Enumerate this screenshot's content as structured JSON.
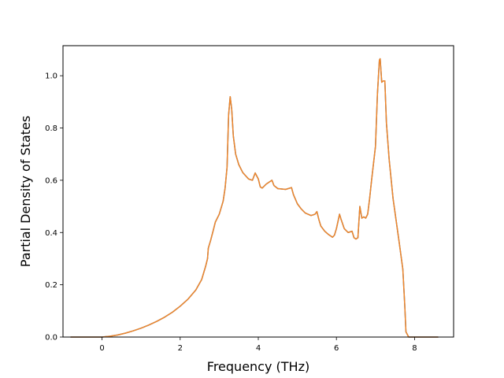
{
  "chart_data": {
    "type": "line",
    "title": "",
    "xlabel": "Frequency (THz)",
    "ylabel": "Partial Density of States",
    "xlim": [
      -1.0,
      9.0
    ],
    "ylim": [
      0.0,
      1.115
    ],
    "x_ticks": [
      0,
      2,
      4,
      6,
      8
    ],
    "x_tick_labels": [
      "0",
      "2",
      "4",
      "6",
      "8"
    ],
    "y_ticks": [
      0.0,
      0.2,
      0.4,
      0.6,
      0.8,
      1.0
    ],
    "y_tick_labels": [
      "0.0",
      "0.2",
      "0.4",
      "0.6",
      "0.8",
      "1.0"
    ],
    "grid": false,
    "legend": "none",
    "series": [
      {
        "color": "#2f72b2",
        "points": [
          [
            -0.8,
            0.0
          ],
          [
            0.0,
            0.0
          ],
          [
            0.2,
            0.003
          ],
          [
            0.4,
            0.008
          ],
          [
            0.6,
            0.015
          ],
          [
            0.8,
            0.024
          ],
          [
            1.0,
            0.034
          ],
          [
            1.2,
            0.046
          ],
          [
            1.4,
            0.06
          ],
          [
            1.6,
            0.076
          ],
          [
            1.8,
            0.095
          ],
          [
            2.0,
            0.118
          ],
          [
            2.2,
            0.145
          ],
          [
            2.4,
            0.18
          ],
          [
            2.55,
            0.22
          ],
          [
            2.65,
            0.27
          ],
          [
            2.7,
            0.3
          ],
          [
            2.72,
            0.34
          ],
          [
            2.78,
            0.37
          ],
          [
            2.85,
            0.41
          ],
          [
            2.9,
            0.44
          ],
          [
            3.0,
            0.47
          ],
          [
            3.1,
            0.52
          ],
          [
            3.15,
            0.57
          ],
          [
            3.2,
            0.65
          ],
          [
            3.24,
            0.85
          ],
          [
            3.28,
            0.92
          ],
          [
            3.32,
            0.87
          ],
          [
            3.36,
            0.77
          ],
          [
            3.42,
            0.7
          ],
          [
            3.5,
            0.66
          ],
          [
            3.6,
            0.63
          ],
          [
            3.75,
            0.605
          ],
          [
            3.85,
            0.6
          ],
          [
            3.92,
            0.628
          ],
          [
            4.0,
            0.605
          ],
          [
            4.05,
            0.575
          ],
          [
            4.1,
            0.57
          ],
          [
            4.2,
            0.585
          ],
          [
            4.3,
            0.595
          ],
          [
            4.35,
            0.6
          ],
          [
            4.4,
            0.58
          ],
          [
            4.5,
            0.568
          ],
          [
            4.7,
            0.565
          ],
          [
            4.85,
            0.572
          ],
          [
            4.9,
            0.545
          ],
          [
            5.0,
            0.51
          ],
          [
            5.1,
            0.49
          ],
          [
            5.2,
            0.475
          ],
          [
            5.35,
            0.465
          ],
          [
            5.45,
            0.47
          ],
          [
            5.5,
            0.48
          ],
          [
            5.55,
            0.45
          ],
          [
            5.6,
            0.425
          ],
          [
            5.7,
            0.405
          ],
          [
            5.8,
            0.392
          ],
          [
            5.9,
            0.382
          ],
          [
            5.95,
            0.39
          ],
          [
            6.0,
            0.415
          ],
          [
            6.08,
            0.47
          ],
          [
            6.12,
            0.45
          ],
          [
            6.2,
            0.415
          ],
          [
            6.3,
            0.4
          ],
          [
            6.4,
            0.405
          ],
          [
            6.45,
            0.38
          ],
          [
            6.5,
            0.375
          ],
          [
            6.55,
            0.38
          ],
          [
            6.6,
            0.5
          ],
          [
            6.65,
            0.455
          ],
          [
            6.7,
            0.46
          ],
          [
            6.75,
            0.455
          ],
          [
            6.8,
            0.47
          ],
          [
            6.85,
            0.53
          ],
          [
            6.9,
            0.6
          ],
          [
            7.0,
            0.73
          ],
          [
            7.05,
            0.93
          ],
          [
            7.1,
            1.06
          ],
          [
            7.12,
            1.065
          ],
          [
            7.16,
            0.975
          ],
          [
            7.2,
            0.98
          ],
          [
            7.24,
            0.98
          ],
          [
            7.28,
            0.82
          ],
          [
            7.35,
            0.68
          ],
          [
            7.45,
            0.53
          ],
          [
            7.6,
            0.37
          ],
          [
            7.7,
            0.26
          ],
          [
            7.75,
            0.12
          ],
          [
            7.78,
            0.02
          ],
          [
            7.85,
            0.0
          ],
          [
            8.6,
            0.0
          ]
        ]
      },
      {
        "color": "#f0862a",
        "points": [
          [
            -0.8,
            0.0
          ],
          [
            0.0,
            0.0
          ],
          [
            0.2,
            0.003
          ],
          [
            0.4,
            0.008
          ],
          [
            0.6,
            0.015
          ],
          [
            0.8,
            0.024
          ],
          [
            1.0,
            0.034
          ],
          [
            1.2,
            0.046
          ],
          [
            1.4,
            0.06
          ],
          [
            1.6,
            0.076
          ],
          [
            1.8,
            0.095
          ],
          [
            2.0,
            0.118
          ],
          [
            2.2,
            0.145
          ],
          [
            2.4,
            0.18
          ],
          [
            2.55,
            0.22
          ],
          [
            2.65,
            0.27
          ],
          [
            2.7,
            0.3
          ],
          [
            2.72,
            0.34
          ],
          [
            2.78,
            0.37
          ],
          [
            2.85,
            0.41
          ],
          [
            2.9,
            0.44
          ],
          [
            3.0,
            0.47
          ],
          [
            3.1,
            0.52
          ],
          [
            3.15,
            0.57
          ],
          [
            3.2,
            0.65
          ],
          [
            3.24,
            0.85
          ],
          [
            3.28,
            0.92
          ],
          [
            3.32,
            0.87
          ],
          [
            3.36,
            0.77
          ],
          [
            3.42,
            0.7
          ],
          [
            3.5,
            0.66
          ],
          [
            3.6,
            0.63
          ],
          [
            3.75,
            0.605
          ],
          [
            3.85,
            0.6
          ],
          [
            3.92,
            0.628
          ],
          [
            4.0,
            0.605
          ],
          [
            4.05,
            0.575
          ],
          [
            4.1,
            0.57
          ],
          [
            4.2,
            0.585
          ],
          [
            4.3,
            0.595
          ],
          [
            4.35,
            0.6
          ],
          [
            4.4,
            0.58
          ],
          [
            4.5,
            0.568
          ],
          [
            4.7,
            0.565
          ],
          [
            4.85,
            0.572
          ],
          [
            4.9,
            0.545
          ],
          [
            5.0,
            0.51
          ],
          [
            5.1,
            0.49
          ],
          [
            5.2,
            0.475
          ],
          [
            5.35,
            0.465
          ],
          [
            5.45,
            0.47
          ],
          [
            5.5,
            0.48
          ],
          [
            5.55,
            0.45
          ],
          [
            5.6,
            0.425
          ],
          [
            5.7,
            0.405
          ],
          [
            5.8,
            0.392
          ],
          [
            5.9,
            0.382
          ],
          [
            5.95,
            0.39
          ],
          [
            6.0,
            0.415
          ],
          [
            6.08,
            0.47
          ],
          [
            6.12,
            0.45
          ],
          [
            6.2,
            0.415
          ],
          [
            6.3,
            0.4
          ],
          [
            6.4,
            0.405
          ],
          [
            6.45,
            0.38
          ],
          [
            6.5,
            0.375
          ],
          [
            6.55,
            0.38
          ],
          [
            6.6,
            0.5
          ],
          [
            6.65,
            0.455
          ],
          [
            6.7,
            0.46
          ],
          [
            6.75,
            0.455
          ],
          [
            6.8,
            0.47
          ],
          [
            6.85,
            0.53
          ],
          [
            6.9,
            0.6
          ],
          [
            7.0,
            0.73
          ],
          [
            7.05,
            0.93
          ],
          [
            7.1,
            1.06
          ],
          [
            7.12,
            1.065
          ],
          [
            7.16,
            0.975
          ],
          [
            7.2,
            0.98
          ],
          [
            7.24,
            0.98
          ],
          [
            7.28,
            0.82
          ],
          [
            7.35,
            0.68
          ],
          [
            7.45,
            0.53
          ],
          [
            7.6,
            0.37
          ],
          [
            7.7,
            0.26
          ],
          [
            7.75,
            0.12
          ],
          [
            7.78,
            0.02
          ],
          [
            7.85,
            0.0
          ],
          [
            8.6,
            0.0
          ]
        ]
      }
    ]
  }
}
